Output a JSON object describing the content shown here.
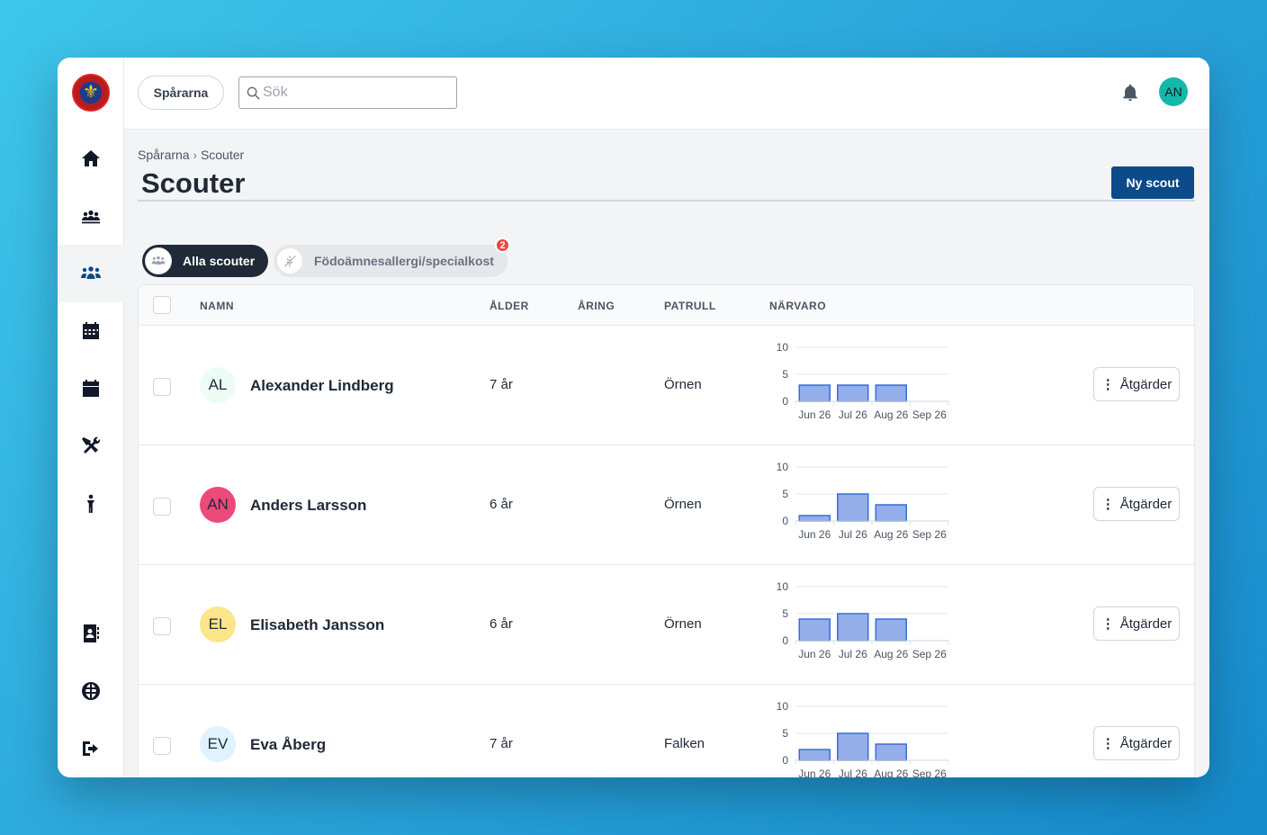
{
  "app": {
    "org_name": "Spårarna"
  },
  "search": {
    "placeholder": "Sök"
  },
  "user": {
    "initials": "AN",
    "avatar_color": "#14b8a6"
  },
  "breadcrumb": {
    "parent": "Spårarna",
    "current": "Scouter"
  },
  "page": {
    "title": "Scouter",
    "new_button": "Ny scout"
  },
  "tabs": [
    {
      "label": "Alla scouter",
      "active": true
    },
    {
      "label": "Födoämnesallergi/specialkost",
      "active": false,
      "badge": "2"
    }
  ],
  "table": {
    "headers": {
      "name": "NAMN",
      "age": "ÅLDER",
      "year": "ÅRING",
      "patrol": "PATRULL",
      "attendance": "NÄRVARO"
    },
    "action_label": "Åtgärder",
    "rows": [
      {
        "initials": "AL",
        "avatar_color": "#ecfdf5",
        "name": "Alexander Lindberg",
        "age": "7 år",
        "year": "",
        "patrol": "Örnen",
        "attendance": [
          3,
          3,
          3,
          0
        ]
      },
      {
        "initials": "AN",
        "avatar_color": "#ec4a7a",
        "name": "Anders Larsson",
        "age": "6 år",
        "year": "",
        "patrol": "Örnen",
        "attendance": [
          1,
          5,
          3,
          0
        ]
      },
      {
        "initials": "EL",
        "avatar_color": "#fde68a",
        "name": "Elisabeth Jansson",
        "age": "6 år",
        "year": "",
        "patrol": "Örnen",
        "attendance": [
          4,
          5,
          4,
          0
        ]
      },
      {
        "initials": "EV",
        "avatar_color": "#e0f2fe",
        "name": "Eva Åberg",
        "age": "7 år",
        "year": "",
        "patrol": "Falken",
        "attendance": [
          2,
          5,
          3,
          0
        ]
      }
    ]
  },
  "chart_data": {
    "type": "bar",
    "categories": [
      "Jun 26",
      "Jul 26",
      "Aug 26",
      "Sep 26"
    ],
    "y_ticks": [
      "10",
      "5",
      "0"
    ],
    "ylim": [
      0,
      10
    ],
    "bar_color": "#93aee8",
    "bar_stroke": "#3b6fd6"
  },
  "colors": {
    "primary": "#0b4a8b",
    "badge": "#ef4444"
  }
}
